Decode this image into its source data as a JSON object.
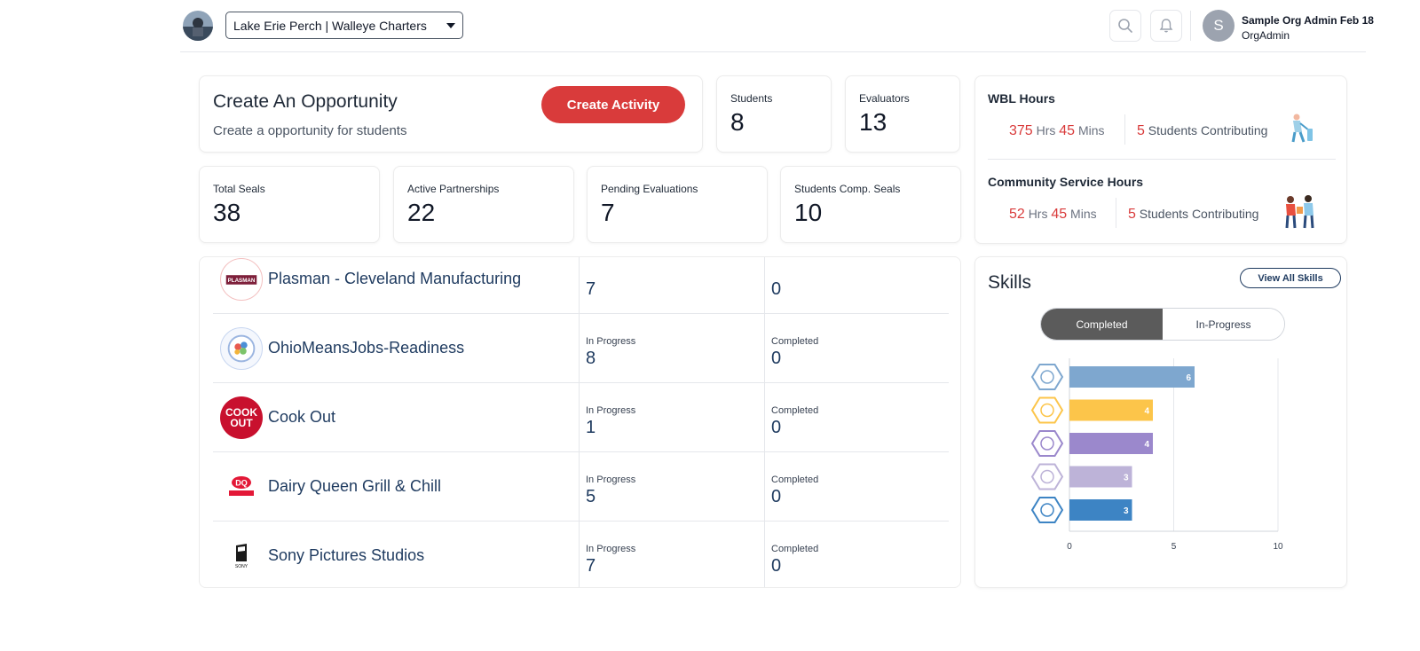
{
  "header": {
    "org_selector": "Lake Erie Perch | Walleye Charters",
    "user": {
      "initial": "S",
      "name": "Sample Org Admin Feb 18",
      "role": "OrgAdmin"
    }
  },
  "opportunity": {
    "title": "Create An Opportunity",
    "subtitle": "Create a opportunity for students",
    "button": "Create Activity"
  },
  "stats_top": [
    {
      "label": "Students",
      "value": "8"
    },
    {
      "label": "Evaluators",
      "value": "13"
    }
  ],
  "stats_bottom": [
    {
      "label": "Total Seals",
      "value": "38"
    },
    {
      "label": "Active Partnerships",
      "value": "22"
    },
    {
      "label": "Pending Evaluations",
      "value": "7"
    },
    {
      "label": "Students Comp. Seals",
      "value": "10"
    }
  ],
  "wbl": {
    "title": "WBL Hours",
    "hours": "375",
    "hrs_label": "Hrs",
    "mins": "45",
    "mins_label": "Mins",
    "students": "5",
    "students_label": "Students Contributing"
  },
  "community": {
    "title": "Community Service Hours",
    "hours": "52",
    "hrs_label": "Hrs",
    "mins": "45",
    "mins_label": "Mins",
    "students": "5",
    "students_label": "Students Contributing"
  },
  "partners": {
    "in_progress_label": "In Progress",
    "completed_label": "Completed",
    "rows": [
      {
        "name": "Plasman - Cleveland Manufacturing",
        "in_progress": "7",
        "completed": "0"
      },
      {
        "name": "OhioMeansJobs-Readiness",
        "in_progress": "8",
        "completed": "0"
      },
      {
        "name": "Cook Out",
        "in_progress": "1",
        "completed": "0"
      },
      {
        "name": "Dairy Queen Grill & Chill",
        "in_progress": "5",
        "completed": "0"
      },
      {
        "name": "Sony Pictures Studios",
        "in_progress": "7",
        "completed": "0"
      }
    ],
    "logo_text": {
      "plasman": "PLASMAN",
      "cookout_1": "COOK",
      "cookout_2": "OUT",
      "dq": "DQ",
      "sony": "SONY"
    }
  },
  "skills": {
    "title": "Skills",
    "view_all": "View All Skills",
    "tabs": [
      "Completed",
      "In-Progress"
    ],
    "active_tab": "Completed"
  },
  "chart_data": {
    "type": "bar",
    "orientation": "horizontal",
    "categories": [
      "skill-1",
      "skill-2",
      "skill-3",
      "skill-4",
      "skill-5"
    ],
    "values": [
      6,
      4,
      4,
      3,
      3
    ],
    "colors": [
      "#7ea7cf",
      "#fcc54a",
      "#9b88cc",
      "#bdb3d8",
      "#3d84c4"
    ],
    "xticks": [
      0,
      5,
      10
    ],
    "xlim": [
      0,
      10
    ],
    "grid": true
  },
  "colors": {
    "accent": "#d93b3b",
    "navy": "#1e3a5f"
  }
}
